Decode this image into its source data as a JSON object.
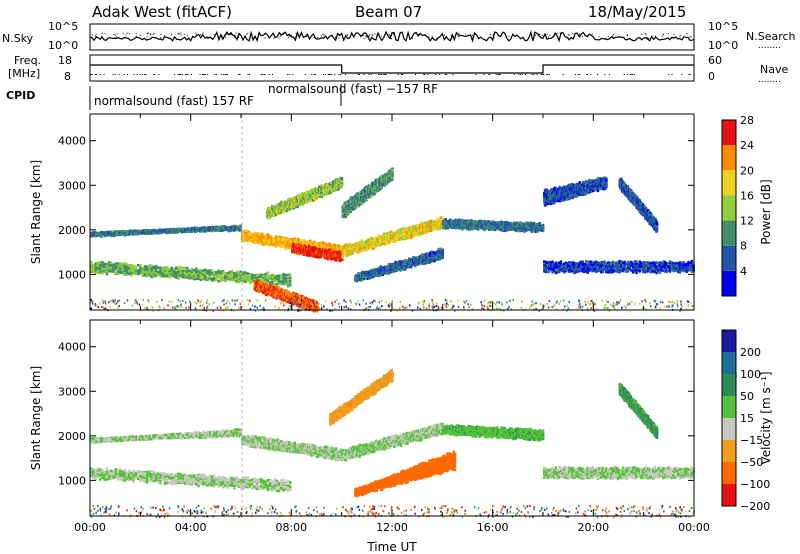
{
  "header": {
    "station": "Adak West (fitACF)",
    "beam": "Beam 07",
    "date": "18/May/2015"
  },
  "labels": {
    "nsky": "N.Sky",
    "nsearch": "N.Search",
    "freq_line1": "Freq.",
    "freq_line2": "[MHz]",
    "nave": "Nave",
    "cpid": "CPID",
    "exp1": "normalsound (fast) 157 RF",
    "exp2": "normalsound (fast) −157 RF",
    "legend_dots": "........"
  },
  "top_axes": {
    "noise_left_ticks": [
      "10^5",
      "10^0"
    ],
    "noise_right_ticks": [
      "10^5",
      "10^0"
    ],
    "freq_left_ticks": [
      "18",
      "8"
    ],
    "nave_right_ticks": [
      "60",
      "0"
    ]
  },
  "chart_data": [
    {
      "type": "heatmap",
      "panel": "power",
      "ylabel": "Slant Range [km]",
      "y_ticks": [
        "1000",
        "2000",
        "3000",
        "4000"
      ],
      "ylim": [
        200,
        4600
      ],
      "xlim": [
        0,
        24
      ],
      "colorbar": {
        "label": "Power [dB]",
        "ticks": [
          "4",
          "8",
          "12",
          "16",
          "20",
          "24",
          "28"
        ],
        "colors": [
          "#0000ee",
          "#2255aa",
          "#3f8f6a",
          "#8fce3c",
          "#f0d020",
          "#ff8c00",
          "#e81010"
        ]
      },
      "bands": [
        {
          "t0": 0.0,
          "t1": 6.0,
          "r0": 1950,
          "r1": 2050,
          "r2": 2100,
          "r3": 1900,
          "power": 10
        },
        {
          "t0": 6.0,
          "t1": 10.0,
          "r0": 2000,
          "r1": 1650,
          "r2": 1450,
          "r3": 1800,
          "power": 22
        },
        {
          "t0": 8.0,
          "t1": 10.0,
          "r0": 1700,
          "r1": 1500,
          "r2": 1350,
          "r3": 1550,
          "power": 28
        },
        {
          "t0": 10.0,
          "t1": 14.0,
          "r0": 1450,
          "r1": 2100,
          "r2": 2300,
          "r3": 1650,
          "power": 20
        },
        {
          "t0": 14.0,
          "t1": 18.0,
          "r0": 2100,
          "r1": 2000,
          "r2": 2150,
          "r3": 2250,
          "power": 10
        },
        {
          "t0": 0.0,
          "t1": 8.0,
          "r0": 1300,
          "r1": 1000,
          "r2": 800,
          "r3": 1100,
          "power": 14
        },
        {
          "t0": 6.5,
          "t1": 9.0,
          "r0": 900,
          "r1": 400,
          "r2": 200,
          "r3": 700,
          "power": 26
        },
        {
          "t0": 7.0,
          "t1": 10.0,
          "r0": 2300,
          "r1": 3000,
          "r2": 3200,
          "r3": 2500,
          "power": 16
        },
        {
          "t0": 10.0,
          "t1": 12.0,
          "r0": 2300,
          "r1": 3200,
          "r2": 3400,
          "r3": 2600,
          "power": 12
        },
        {
          "t0": 10.5,
          "t1": 14.0,
          "r0": 900,
          "r1": 1400,
          "r2": 1600,
          "r3": 1000,
          "power": 9
        },
        {
          "t0": 18.0,
          "t1": 24.0,
          "r0": 1100,
          "r1": 1100,
          "r2": 1300,
          "r3": 1300,
          "power": 7
        },
        {
          "t0": 18.0,
          "t1": 20.5,
          "r0": 2600,
          "r1": 3000,
          "r2": 3200,
          "r3": 2900,
          "power": 8
        },
        {
          "t0": 21.0,
          "t1": 22.5,
          "r0": 3000,
          "r1": 2000,
          "r2": 2200,
          "r3": 3200,
          "power": 8
        }
      ]
    },
    {
      "type": "heatmap",
      "panel": "velocity",
      "xlabel": "Time UT",
      "ylabel": "Slant Range [km]",
      "x_ticks": [
        "00:00",
        "04:00",
        "08:00",
        "12:00",
        "16:00",
        "20:00",
        "00:00"
      ],
      "y_ticks": [
        "1000",
        "2000",
        "3000",
        "4000"
      ],
      "ylim": [
        200,
        4600
      ],
      "xlim": [
        0,
        24
      ],
      "colorbar": {
        "label": "Velocity [m s⁻¹]",
        "ticks": [
          "200",
          "100",
          "50",
          "15",
          "−15",
          "−50",
          "−100",
          "−200"
        ],
        "colors": [
          "#1a1aa0",
          "#1f6e9a",
          "#2e8b57",
          "#55c23a",
          "#c8c8c0",
          "#f0a020",
          "#ff6a00",
          "#e81010"
        ]
      },
      "bands": [
        {
          "t0": 0.0,
          "t1": 6.0,
          "r0": 1950,
          "r1": 2050,
          "r2": 2150,
          "r3": 1900,
          "vel": 0
        },
        {
          "t0": 6.0,
          "t1": 10.0,
          "r0": 2050,
          "r1": 1700,
          "r2": 1500,
          "r3": 1850,
          "vel": 0
        },
        {
          "t0": 10.0,
          "t1": 14.0,
          "r0": 1500,
          "r1": 2100,
          "r2": 2300,
          "r3": 1700,
          "vel": 0
        },
        {
          "t0": 14.0,
          "t1": 18.0,
          "r0": 2100,
          "r1": 1950,
          "r2": 2150,
          "r3": 2250,
          "vel": 20
        },
        {
          "t0": 0.0,
          "t1": 8.0,
          "r0": 1300,
          "r1": 1000,
          "r2": 800,
          "r3": 1100,
          "vel": 0
        },
        {
          "t0": 9.5,
          "t1": 12.0,
          "r0": 2300,
          "r1": 3300,
          "r2": 3500,
          "r3": 2500,
          "vel": -60
        },
        {
          "t0": 10.5,
          "t1": 14.5,
          "r0": 700,
          "r1": 1300,
          "r2": 1700,
          "r3": 800,
          "vel": -130
        },
        {
          "t0": 18.0,
          "t1": 24.0,
          "r0": 1100,
          "r1": 1100,
          "r2": 1300,
          "r3": 1300,
          "vel": 0
        },
        {
          "t0": 21.0,
          "t1": 22.5,
          "r0": 3000,
          "r1": 2000,
          "r2": 2200,
          "r3": 3200,
          "vel": 40
        }
      ]
    }
  ],
  "noise_series": {
    "sky_level": 0.35,
    "search_level": 0.45
  },
  "freq_series": {
    "segments": [
      {
        "t0": 0.0,
        "t1": 10.0,
        "level": "high"
      },
      {
        "t0": 10.0,
        "t1": 18.0,
        "level": "low"
      },
      {
        "t0": 18.0,
        "t1": 24.0,
        "level": "high"
      }
    ]
  }
}
